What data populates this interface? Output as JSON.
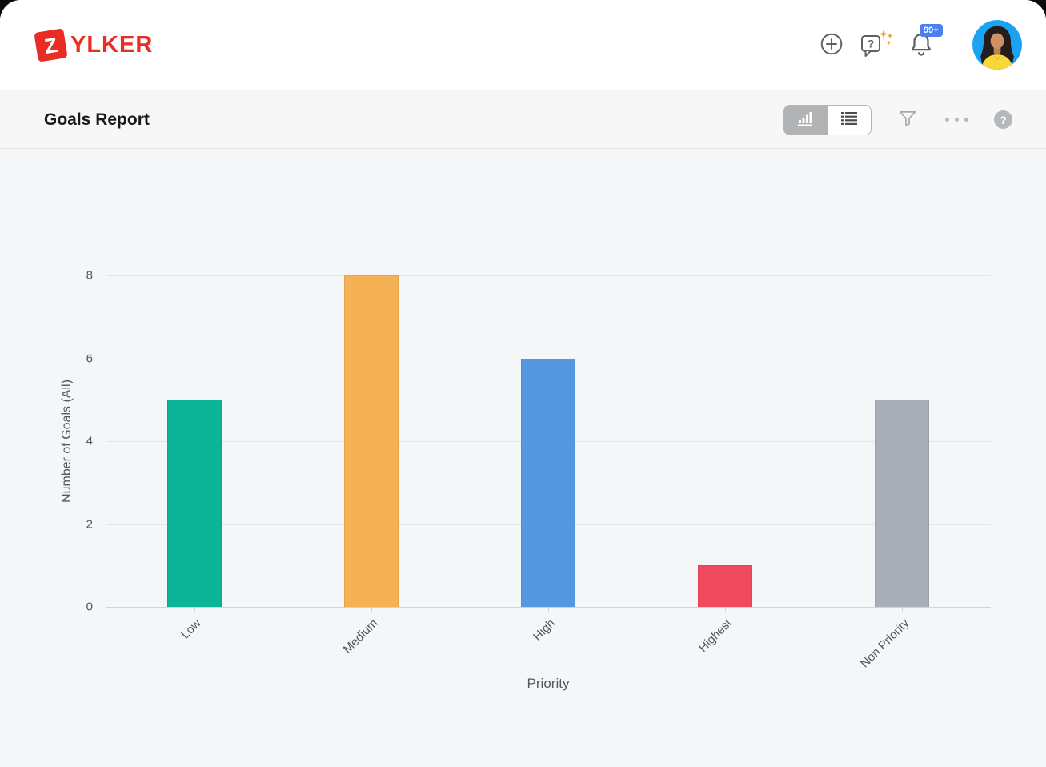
{
  "brand": {
    "mark": "Z",
    "name": "YLKER",
    "color": "#ea2d24"
  },
  "header": {
    "notification_badge": "99+"
  },
  "toolbar": {
    "title": "Goals Report",
    "view_toggle": {
      "active_view": "chart",
      "options": [
        "chart",
        "list"
      ]
    },
    "help_mark": "?"
  },
  "chart_data": {
    "type": "bar",
    "title": "",
    "categories": [
      "Low",
      "Medium",
      "High",
      "Highest",
      "Non Priority"
    ],
    "values": [
      5,
      8,
      6,
      1,
      5
    ],
    "bar_colors": [
      "#0cb596",
      "#f6b155",
      "#5598e0",
      "#f04a5f",
      "#a9aeb6"
    ],
    "xlabel": "Priority",
    "ylabel": "Number of Goals (All)",
    "ylim": [
      0,
      8
    ],
    "yticks": [
      0,
      2,
      4,
      6,
      8
    ],
    "grid": true,
    "legend": false
  },
  "colors": {
    "accent_red": "#ea2d24",
    "badge_blue": "#4a80ee",
    "sparkle_orange": "#f0a138",
    "chart_background": "#f5f6f8",
    "gridline": "#e4e6ea",
    "axis_line": "#c9d3ea"
  }
}
